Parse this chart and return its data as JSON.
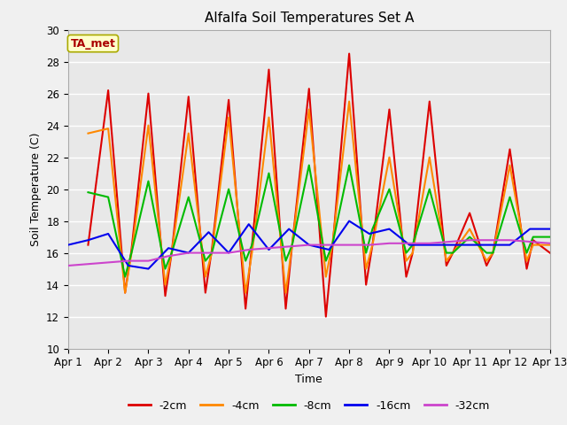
{
  "title": "Alfalfa Soil Temperatures Set A",
  "xlabel": "Time",
  "ylabel": "Soil Temperature (C)",
  "ylim": [
    10,
    30
  ],
  "xlim": [
    0,
    12
  ],
  "xtick_labels": [
    "Apr 1",
    "Apr 2",
    "Apr 3",
    "Apr 4",
    "Apr 5",
    "Apr 6",
    "Apr 7",
    "Apr 8",
    "Apr 9",
    "Apr 10",
    "Apr 11",
    "Apr 12",
    "Apr 13"
  ],
  "xtick_positions": [
    0,
    1,
    2,
    3,
    4,
    5,
    6,
    7,
    8,
    9,
    10,
    11,
    12
  ],
  "ytick_positions": [
    10,
    12,
    14,
    16,
    18,
    20,
    22,
    24,
    26,
    28,
    30
  ],
  "annotation_text": "TA_met",
  "annotation_color": "#aa0000",
  "annotation_bg": "#ffffcc",
  "annotation_edge": "#aaaa00",
  "plot_bg_color": "#e8e8e8",
  "fig_bg_color": "#f0f0f0",
  "grid_color": "#ffffff",
  "series": {
    "m2cm": {
      "label": "-2cm",
      "color": "#dd0000",
      "x": [
        0.5,
        1.0,
        1.42,
        1.58,
        2.0,
        2.42,
        2.58,
        3.0,
        3.42,
        3.58,
        4.0,
        4.42,
        4.58,
        5.0,
        5.42,
        5.58,
        6.0,
        6.42,
        6.58,
        7.0,
        7.42,
        7.58,
        8.0,
        8.42,
        8.58,
        9.0,
        9.42,
        9.58,
        10.0,
        10.42,
        10.58,
        11.0,
        11.42,
        11.58,
        12.0
      ],
      "y": [
        16.5,
        26.2,
        13.5,
        16.2,
        26.0,
        13.3,
        16.0,
        25.8,
        13.5,
        16.2,
        25.6,
        12.5,
        16.5,
        27.5,
        12.5,
        16.5,
        26.3,
        12.0,
        16.2,
        28.5,
        14.0,
        16.5,
        25.0,
        14.5,
        16.0,
        25.5,
        15.2,
        16.0,
        18.5,
        15.2,
        16.0,
        22.5,
        15.0,
        16.8,
        16.0
      ]
    },
    "m4cm": {
      "label": "-4cm",
      "color": "#ff8800",
      "x": [
        0.5,
        1.0,
        1.42,
        1.58,
        2.0,
        2.42,
        2.58,
        3.0,
        3.42,
        3.58,
        4.0,
        4.42,
        4.58,
        5.0,
        5.42,
        5.58,
        6.0,
        6.42,
        6.58,
        7.0,
        7.42,
        7.58,
        8.0,
        8.42,
        8.58,
        9.0,
        9.42,
        9.58,
        10.0,
        10.42,
        10.58,
        11.0,
        11.42,
        11.58,
        12.0
      ],
      "y": [
        23.5,
        23.8,
        13.5,
        16.0,
        24.0,
        14.0,
        16.0,
        23.5,
        14.5,
        16.0,
        24.5,
        13.5,
        16.0,
        24.5,
        13.5,
        16.5,
        25.0,
        14.5,
        16.5,
        25.5,
        15.0,
        16.5,
        22.0,
        15.5,
        16.0,
        22.0,
        15.5,
        16.0,
        17.5,
        15.5,
        16.0,
        21.5,
        15.5,
        16.5,
        16.5
      ]
    },
    "m8cm": {
      "label": "-8cm",
      "color": "#00bb00",
      "x": [
        0.5,
        1.0,
        1.42,
        1.58,
        2.0,
        2.42,
        2.58,
        3.0,
        3.42,
        3.58,
        4.0,
        4.42,
        4.58,
        5.0,
        5.42,
        5.58,
        6.0,
        6.42,
        6.58,
        7.0,
        7.42,
        7.58,
        8.0,
        8.42,
        8.58,
        9.0,
        9.42,
        9.58,
        10.0,
        10.42,
        10.58,
        11.0,
        11.42,
        11.58,
        12.0
      ],
      "y": [
        19.8,
        19.5,
        14.5,
        16.0,
        20.5,
        15.0,
        16.0,
        19.5,
        15.5,
        16.0,
        20.0,
        15.5,
        16.5,
        21.0,
        15.5,
        16.5,
        21.5,
        15.5,
        16.5,
        21.5,
        16.0,
        17.5,
        20.0,
        16.0,
        16.5,
        20.0,
        16.0,
        16.0,
        17.0,
        16.0,
        16.0,
        19.5,
        16.0,
        17.0,
        17.0
      ]
    },
    "m16cm": {
      "label": "-16cm",
      "color": "#0000ee",
      "x": [
        0.0,
        0.5,
        1.0,
        1.5,
        2.0,
        2.5,
        3.0,
        3.5,
        4.0,
        4.5,
        5.0,
        5.5,
        6.0,
        6.5,
        7.0,
        7.5,
        8.0,
        8.5,
        9.0,
        9.5,
        10.0,
        10.5,
        11.0,
        11.5,
        12.0
      ],
      "y": [
        16.5,
        16.8,
        17.2,
        15.2,
        15.0,
        16.3,
        16.0,
        17.3,
        16.0,
        17.8,
        16.2,
        17.5,
        16.5,
        16.2,
        18.0,
        17.2,
        17.5,
        16.5,
        16.5,
        16.5,
        16.5,
        16.5,
        16.5,
        17.5,
        17.5
      ]
    },
    "m32cm": {
      "label": "-32cm",
      "color": "#cc44cc",
      "x": [
        0.0,
        0.5,
        1.0,
        1.5,
        2.0,
        2.5,
        3.0,
        3.5,
        4.0,
        4.5,
        5.0,
        5.5,
        6.0,
        6.5,
        7.0,
        7.5,
        8.0,
        8.5,
        9.0,
        9.5,
        10.0,
        10.5,
        11.0,
        11.5,
        12.0
      ],
      "y": [
        15.2,
        15.3,
        15.4,
        15.5,
        15.5,
        15.8,
        16.0,
        16.0,
        16.0,
        16.2,
        16.3,
        16.4,
        16.5,
        16.5,
        16.5,
        16.5,
        16.6,
        16.6,
        16.6,
        16.7,
        16.8,
        16.8,
        16.8,
        16.7,
        16.6
      ]
    }
  }
}
